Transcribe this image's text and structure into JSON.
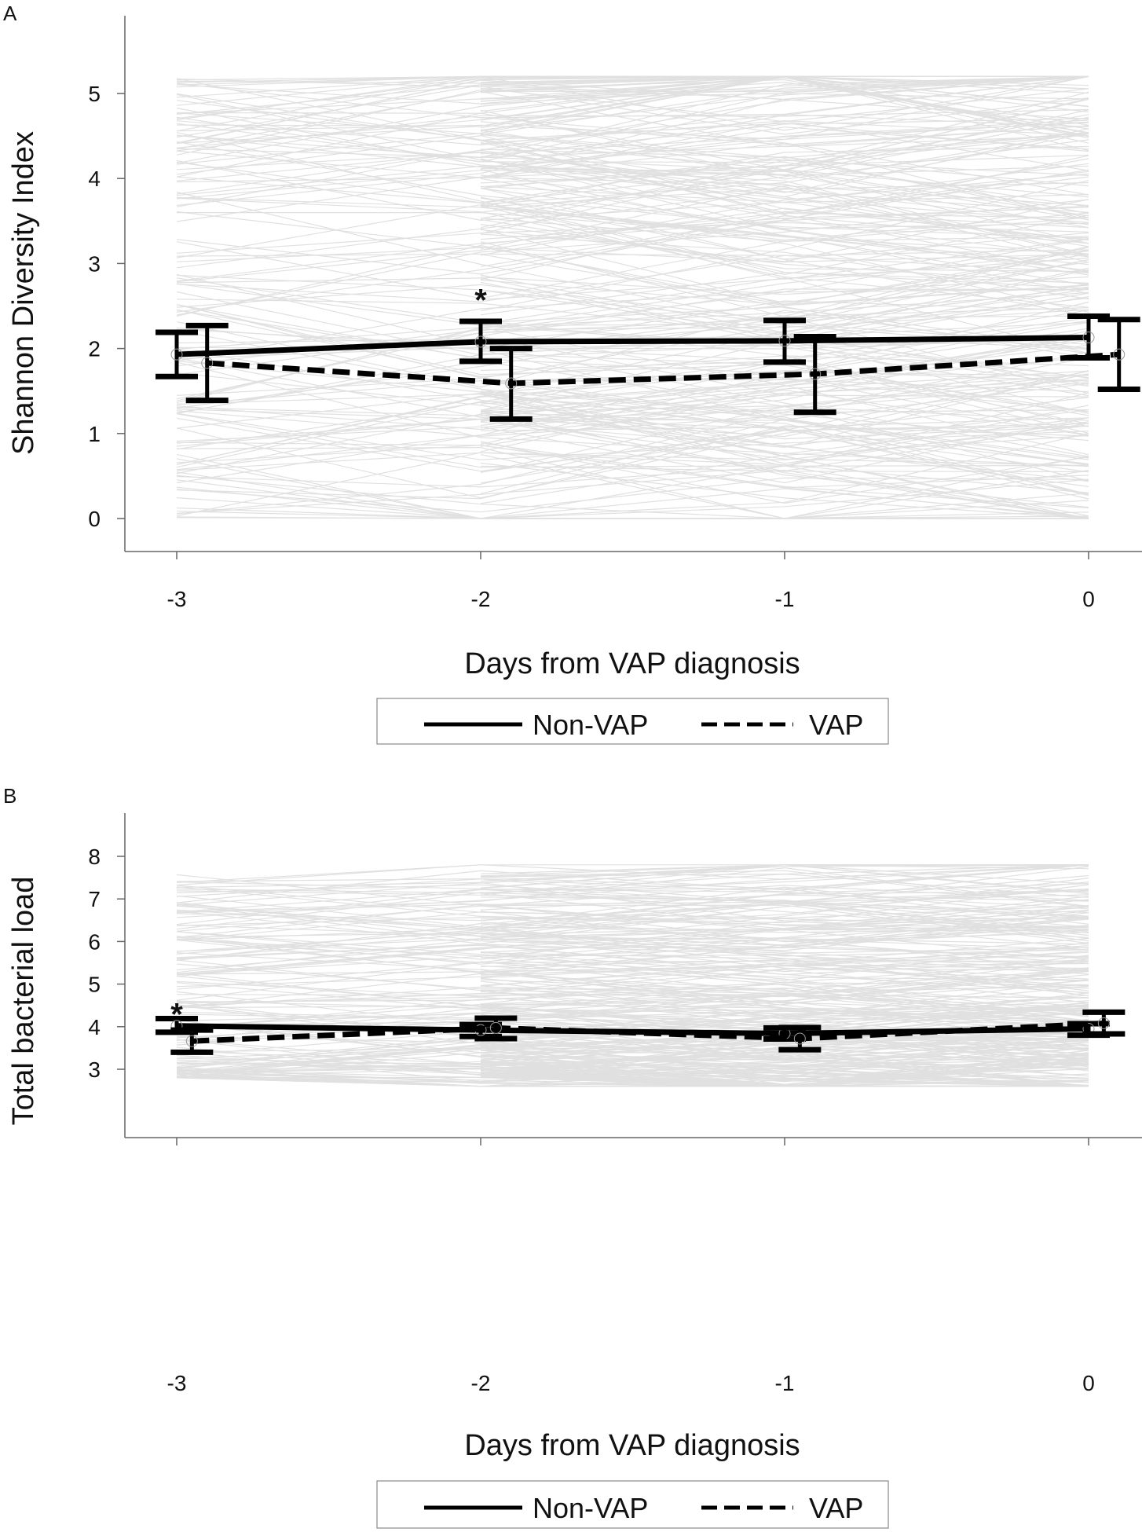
{
  "chart_data": [
    {
      "type": "line",
      "panel_label": "A",
      "title": "",
      "xlabel": "Days from VAP diagnosis",
      "ylabel": "Shannon Diversity Index",
      "x": [
        -3,
        -2,
        -1,
        0
      ],
      "x_ticks": [
        "-3",
        "-2",
        "-1",
        "0"
      ],
      "y_ticks": [
        "0",
        "1",
        "2",
        "3",
        "4",
        "5"
      ],
      "ylim": [
        -0.4,
        5.5
      ],
      "xlim": [
        -3.2,
        0.15
      ],
      "grid": false,
      "legend": {
        "placement": "bottom",
        "entries": [
          "Non-VAP",
          "VAP"
        ]
      },
      "annotations": [
        {
          "text": "*",
          "x": -2,
          "y": 2.65
        }
      ],
      "background_individual_trajectories": {
        "count": 300,
        "range": [
          0,
          5.2
        ],
        "color": "#d6d6d6"
      },
      "series": [
        {
          "name": "Non-VAP",
          "style": "solid",
          "x_offset": 0,
          "values": [
            1.93,
            2.08,
            2.09,
            2.13
          ],
          "lower": [
            1.67,
            1.85,
            1.84,
            1.89
          ],
          "upper": [
            2.19,
            2.32,
            2.33,
            2.38
          ]
        },
        {
          "name": "VAP",
          "style": "dashed",
          "x_offset": 0.1,
          "values": [
            1.83,
            1.59,
            1.7,
            1.93
          ],
          "lower": [
            1.39,
            1.17,
            1.25,
            1.52
          ],
          "upper": [
            2.27,
            2.0,
            2.14,
            2.34
          ]
        }
      ]
    },
    {
      "type": "line",
      "panel_label": "B",
      "title": "",
      "xlabel": "Days from VAP diagnosis",
      "ylabel": "Total bacterial load",
      "x": [
        -3,
        -2,
        -1,
        0
      ],
      "x_ticks": [
        "-3",
        "-2",
        "-1",
        "0"
      ],
      "y_ticks": [
        "3",
        "4",
        "5",
        "6",
        "7",
        "8"
      ],
      "ylim": [
        1.8,
        8.4
      ],
      "xlim": [
        -3.2,
        0.15
      ],
      "grid": false,
      "legend": {
        "placement": "bottom",
        "entries": [
          "Non-VAP",
          "VAP"
        ]
      },
      "annotations": [
        {
          "text": "*",
          "x": -3,
          "y": 4.45
        }
      ],
      "background_individual_trajectories": {
        "count": 300,
        "range": [
          2.6,
          7.8
        ],
        "color": "#d6d6d6"
      },
      "series": [
        {
          "name": "Non-VAP",
          "style": "solid",
          "x_offset": 0,
          "values": [
            4.02,
            3.92,
            3.84,
            3.95
          ],
          "lower": [
            3.87,
            3.77,
            3.71,
            3.8
          ],
          "upper": [
            4.19,
            4.05,
            3.97,
            4.07
          ]
        },
        {
          "name": "VAP",
          "style": "dashed",
          "x_offset": 0.05,
          "values": [
            3.66,
            3.97,
            3.72,
            4.08
          ],
          "lower": [
            3.4,
            3.72,
            3.46,
            3.83
          ],
          "upper": [
            3.92,
            4.2,
            3.98,
            4.34
          ]
        }
      ]
    }
  ]
}
